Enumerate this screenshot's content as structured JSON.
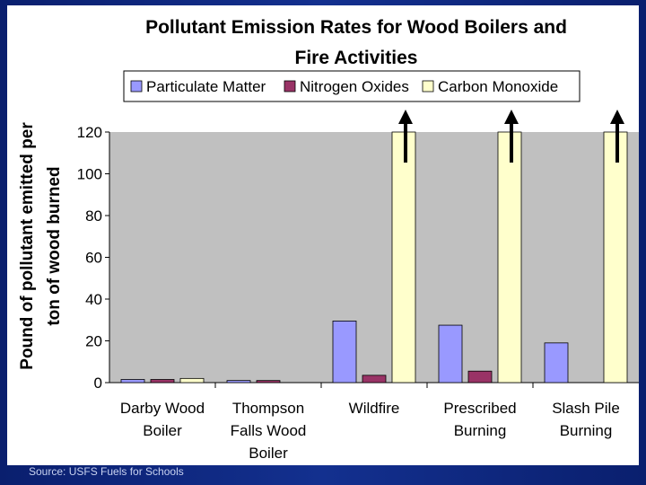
{
  "slide": {
    "source": "Source: USFS Fuels for Schools"
  },
  "chart_data": {
    "type": "bar",
    "title_line1": "Pollutant Emission Rates for Wood Boilers and",
    "title_line2": "Fire Activities",
    "ylabel_line1": "Pound of pollutant emitted per",
    "ylabel_line2": "ton of wood burned",
    "xlabel": "",
    "ylim": [
      0,
      120
    ],
    "yticks": [
      0,
      20,
      40,
      60,
      80,
      100,
      120
    ],
    "grid": false,
    "legend_position": "top",
    "plot_background": "#c0c0c0",
    "categories": [
      [
        "Darby Wood",
        "Boiler"
      ],
      [
        "Thompson",
        "Falls Wood",
        "Boiler"
      ],
      [
        "Wildfire"
      ],
      [
        "Prescribed",
        "Burning"
      ],
      [
        "Slash Pile",
        "Burning"
      ]
    ],
    "series": [
      {
        "name": "Particulate Matter",
        "color": "#9999ff",
        "values": [
          1.5,
          1,
          29.5,
          27.5,
          19
        ]
      },
      {
        "name": "Nitrogen Oxides",
        "color": "#993366",
        "values": [
          1.5,
          1,
          3.5,
          5.5,
          0
        ]
      },
      {
        "name": "Carbon Monoxide",
        "color": "#ffffcc",
        "values": [
          2,
          0,
          120,
          120,
          120
        ]
      }
    ],
    "annotations": {
      "arrows_on": [
        "Wildfire",
        "Prescribed Burning",
        "Slash Pile Burning"
      ],
      "meaning": "bar exceeds axis maximum",
      "arrow_icon": "up-arrow-icon"
    }
  }
}
